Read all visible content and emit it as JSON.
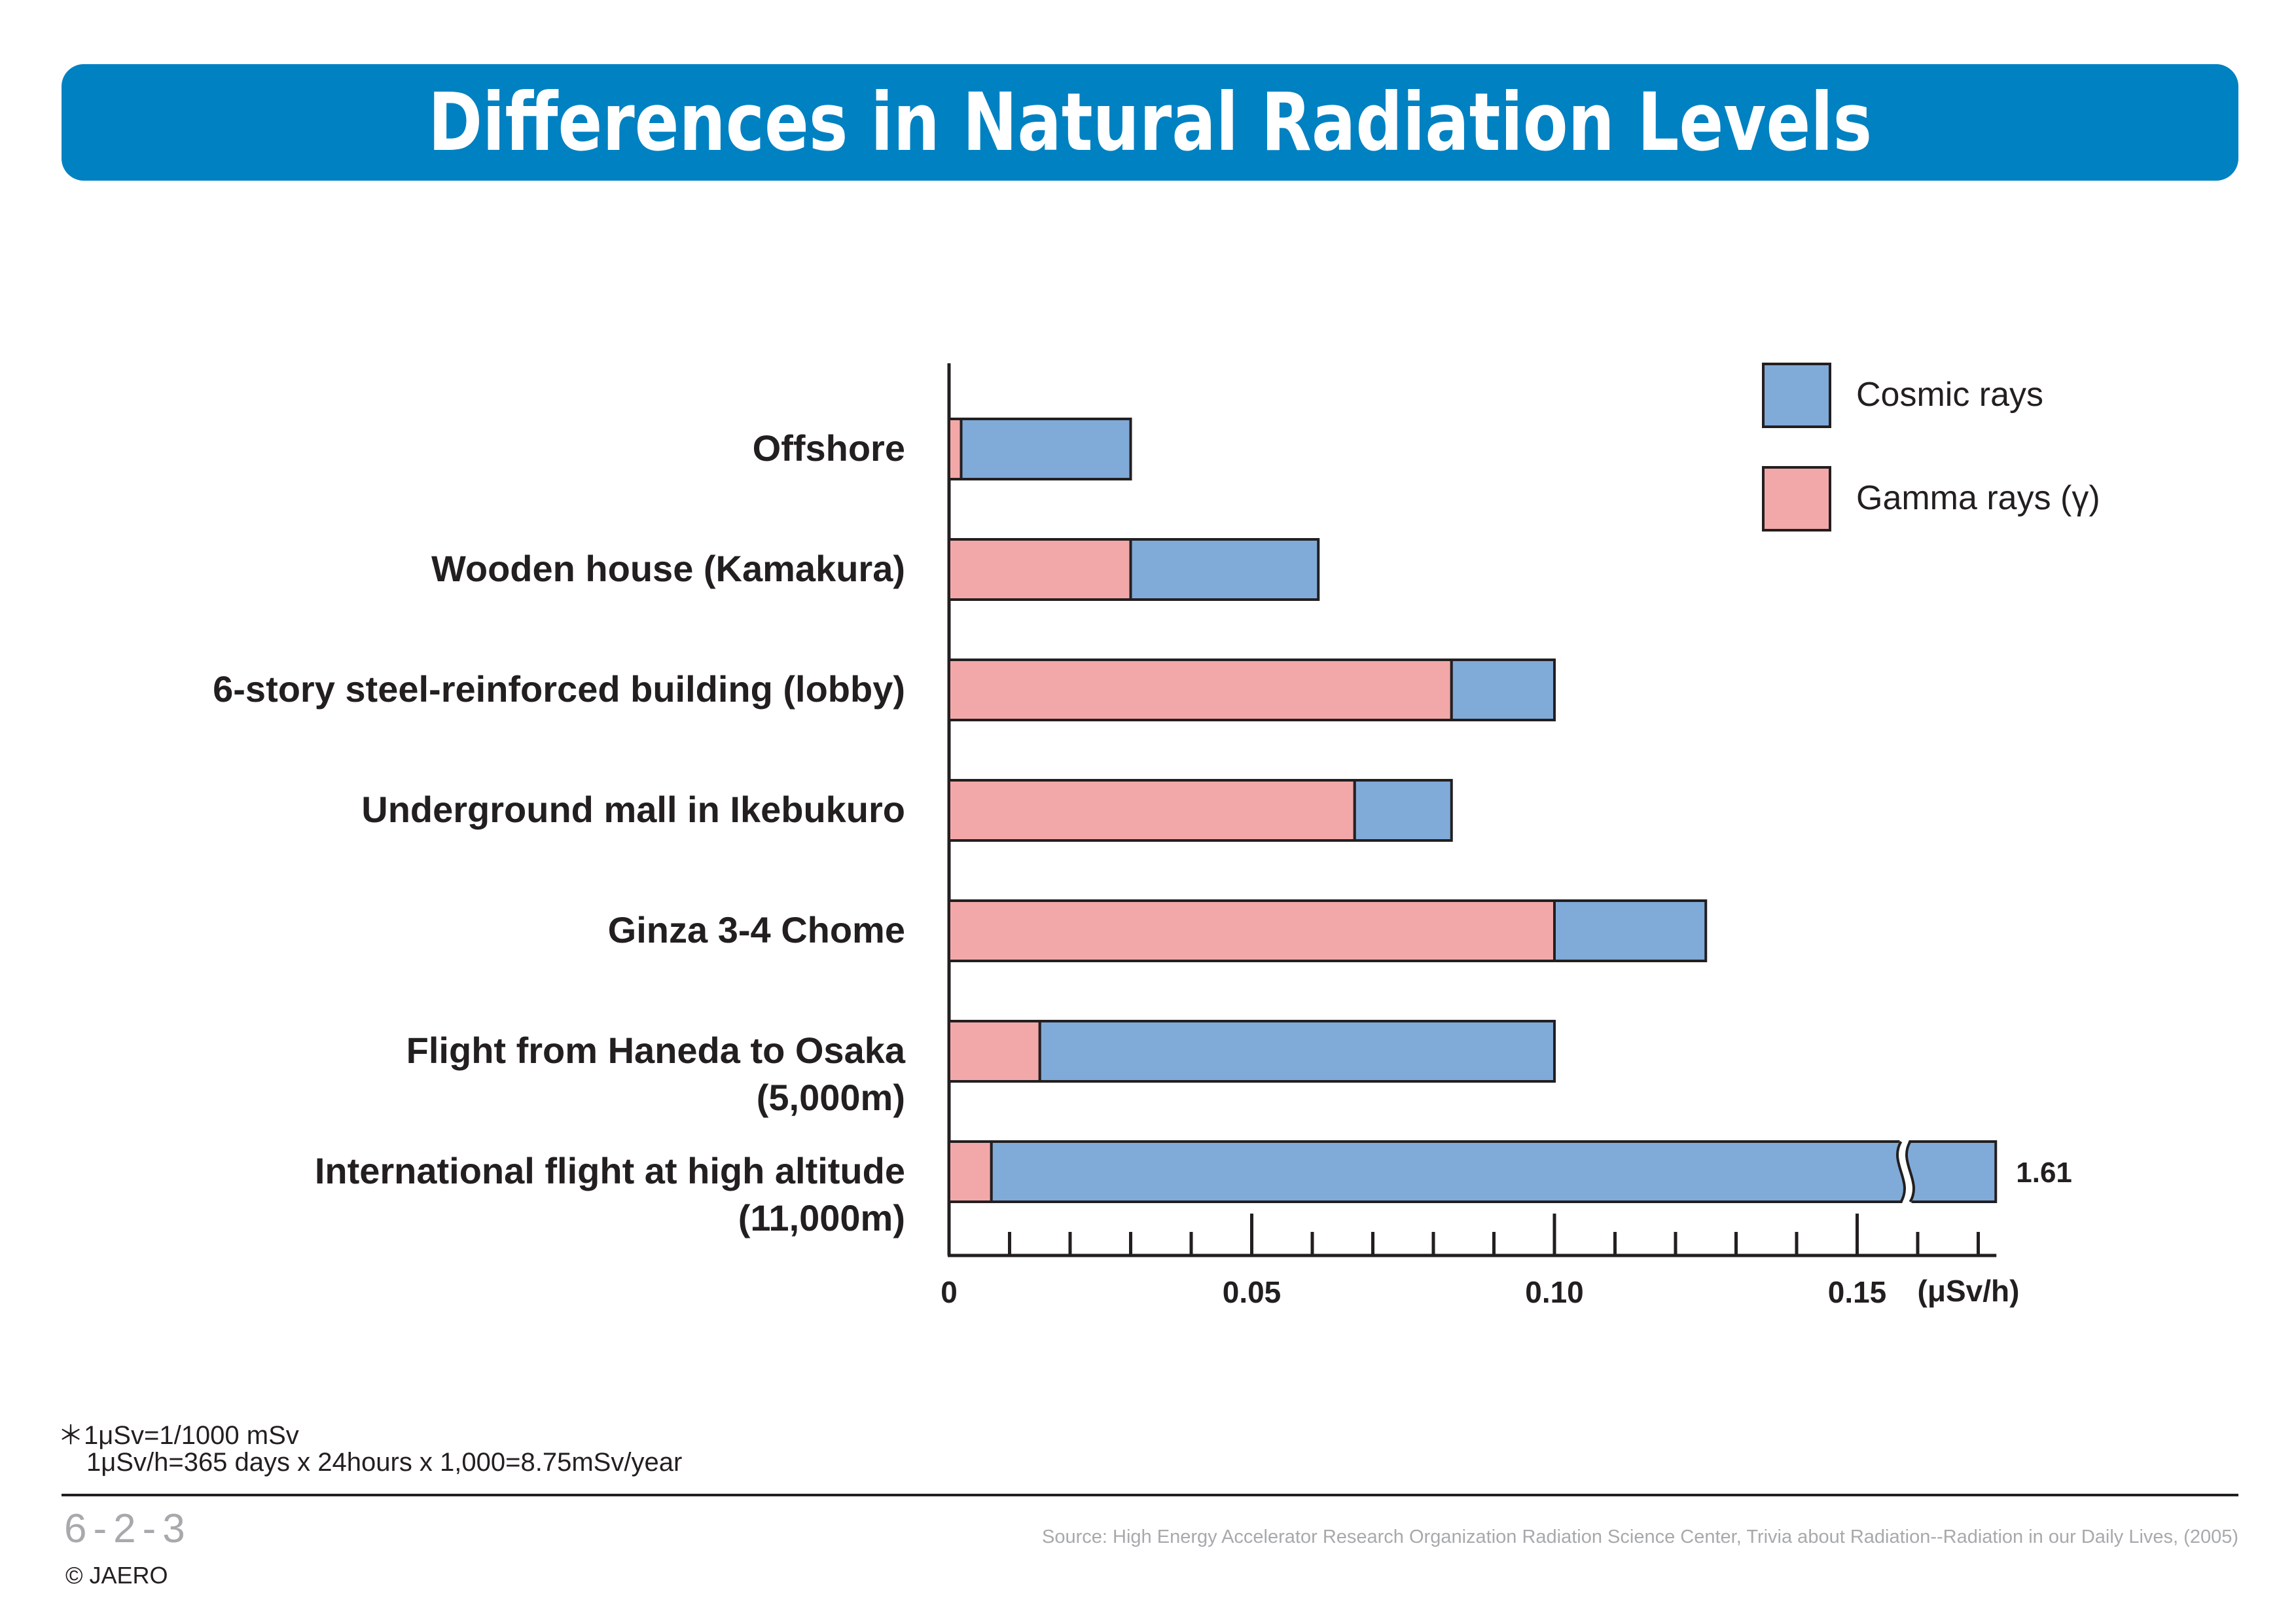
{
  "header": {
    "title": "Differences in Natural Radiation Levels"
  },
  "colors": {
    "banner": "#0081c2",
    "cosmic": "#80aad8",
    "gamma": "#f2a8a8",
    "stroke": "#231f20"
  },
  "chart_data": {
    "type": "bar",
    "orientation": "horizontal",
    "stacked": true,
    "categories": [
      [
        "Offshore"
      ],
      [
        "Wooden house (Kamakura)"
      ],
      [
        "6-story steel-reinforced building (lobby)"
      ],
      [
        "Underground mall in Ikebukuro"
      ],
      [
        "Ginza 3-4 Chome"
      ],
      [
        "Flight from Haneda to Osaka",
        "(5,000m)"
      ],
      [
        "International flight at high altitude",
        "(11,000m)"
      ]
    ],
    "series": [
      {
        "name": "Gamma rays (γ)",
        "values": [
          0.002,
          0.03,
          0.083,
          0.067,
          0.1,
          0.015,
          0.007
        ]
      },
      {
        "name": "Cosmic rays",
        "values": [
          0.028,
          0.031,
          0.017,
          0.016,
          0.025,
          0.085,
          1.603
        ]
      }
    ],
    "totals": [
      0.03,
      0.061,
      0.1,
      0.083,
      0.125,
      0.1,
      1.61
    ],
    "axis_break": {
      "series_index": 1,
      "category_index": 6,
      "label": "1.61"
    },
    "xlim": [
      0,
      0.173
    ],
    "xticks": [
      {
        "value": 0,
        "label": "0"
      },
      {
        "value": 0.05,
        "label": "0.05"
      },
      {
        "value": 0.1,
        "label": "0.10"
      },
      {
        "value": 0.15,
        "label": "0.15"
      }
    ],
    "minor_tick_step": 0.01,
    "xunit": "(μSv/h)",
    "legend": {
      "position": "top-right",
      "order": [
        "Cosmic rays",
        "Gamma rays (γ)"
      ]
    },
    "grid": false
  },
  "notes": {
    "line1": "＊1μSv=1/1000 mSv",
    "line2": "1μSv/h=365 days x 24hours x 1,000=8.75mSv/year"
  },
  "footer": {
    "page": "6-2-3",
    "copyright": "© JAERO",
    "source": "Source: High Energy Accelerator Research Organization Radiation Science Center, Trivia about Radiation--Radiation in our Daily Lives, (2005)"
  }
}
